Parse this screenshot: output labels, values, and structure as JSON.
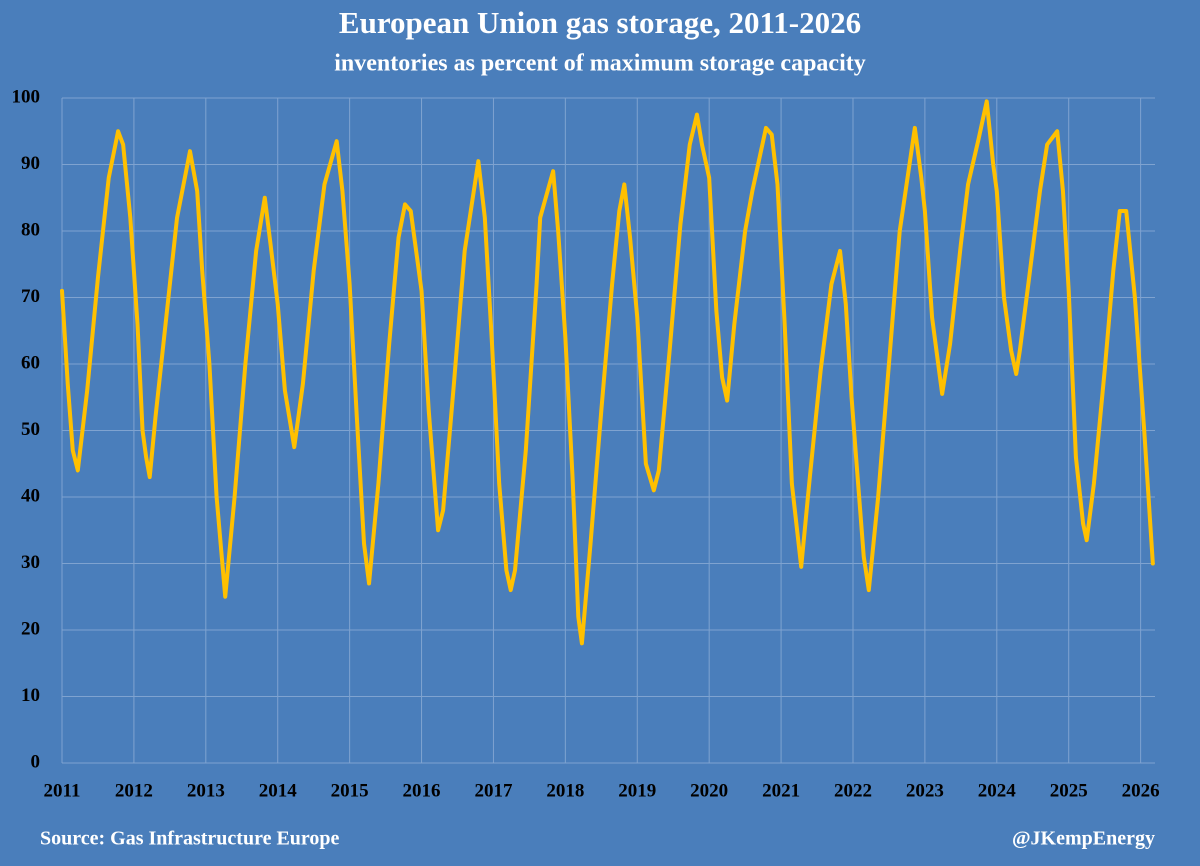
{
  "chart_data": {
    "type": "line",
    "title": "European Union gas storage, 2011-2026",
    "subtitle": "inventories as percent of maximum storage capacity",
    "source": "Source: Gas Infrastructure Europe",
    "credit": "@JKempEnergy",
    "color": "#ffc000",
    "grid": true,
    "xlim": [
      2011,
      2026.2
    ],
    "xticks": [
      2011,
      2012,
      2013,
      2014,
      2015,
      2016,
      2017,
      2018,
      2019,
      2020,
      2021,
      2022,
      2023,
      2024,
      2025,
      2026
    ],
    "ylim": [
      0,
      100
    ],
    "yticks": [
      0,
      10,
      20,
      30,
      40,
      50,
      60,
      70,
      80,
      90,
      100
    ],
    "x": [
      2011.0,
      2011.08,
      2011.15,
      2011.22,
      2011.35,
      2011.5,
      2011.65,
      2011.78,
      2011.85,
      2011.95,
      2012.05,
      2012.12,
      2012.17,
      2012.22,
      2012.3,
      2012.45,
      2012.6,
      2012.78,
      2012.88,
      2012.95,
      2013.05,
      2013.15,
      2013.27,
      2013.4,
      2013.55,
      2013.7,
      2013.82,
      2013.9,
      2014.0,
      2014.1,
      2014.23,
      2014.35,
      2014.5,
      2014.65,
      2014.82,
      2014.9,
      2015.0,
      2015.1,
      2015.2,
      2015.27,
      2015.4,
      2015.55,
      2015.68,
      2015.77,
      2015.85,
      2016.0,
      2016.1,
      2016.23,
      2016.3,
      2016.45,
      2016.6,
      2016.79,
      2016.88,
      2016.98,
      2017.08,
      2017.18,
      2017.24,
      2017.3,
      2017.45,
      2017.6,
      2017.65,
      2017.83,
      2017.9,
      2018.0,
      2018.1,
      2018.18,
      2018.23,
      2018.35,
      2018.5,
      2018.65,
      2018.75,
      2018.82,
      2018.9,
      2019.0,
      2019.12,
      2019.23,
      2019.3,
      2019.45,
      2019.6,
      2019.73,
      2019.83,
      2019.9,
      2020.0,
      2020.1,
      2020.18,
      2020.25,
      2020.35,
      2020.5,
      2020.6,
      2020.79,
      2020.87,
      2020.95,
      2021.05,
      2021.15,
      2021.28,
      2021.4,
      2021.55,
      2021.7,
      2021.82,
      2021.9,
      2021.98,
      2022.05,
      2022.15,
      2022.22,
      2022.35,
      2022.5,
      2022.65,
      2022.86,
      2022.95,
      2023.0,
      2023.1,
      2023.24,
      2023.35,
      2023.5,
      2023.6,
      2023.75,
      2023.86,
      2023.95,
      2024.0,
      2024.1,
      2024.2,
      2024.27,
      2024.32,
      2024.45,
      2024.6,
      2024.7,
      2024.84,
      2024.92,
      2025.0,
      2025.1,
      2025.2,
      2025.25,
      2025.35,
      2025.5,
      2025.62,
      2025.71,
      2025.8,
      2025.92,
      2026.05,
      2026.17
    ],
    "values": [
      71,
      57,
      47,
      44,
      56,
      73,
      88,
      95,
      93,
      82,
      66,
      50,
      46,
      43,
      52,
      67,
      82,
      92,
      86,
      74,
      60,
      40,
      25,
      40,
      60,
      77,
      85,
      78,
      69,
      56,
      47.5,
      57,
      74,
      87,
      93.5,
      86,
      72,
      52,
      33,
      27,
      42,
      63,
      79,
      84,
      83,
      71,
      53,
      35,
      38,
      57,
      77,
      90.5,
      82,
      63,
      42,
      29,
      26,
      29,
      47,
      72,
      82,
      89,
      80,
      64,
      43,
      22,
      18,
      33,
      53,
      72,
      83,
      87,
      79,
      67,
      45,
      41,
      44,
      62,
      81,
      93,
      97.5,
      93,
      88,
      68,
      58,
      54.5,
      66,
      80,
      86,
      95.5,
      94.5,
      87,
      66,
      42,
      29.5,
      43,
      59,
      72,
      77,
      69,
      55,
      45,
      31,
      26,
      40,
      60,
      80,
      95.5,
      88,
      83,
      67,
      55.5,
      63,
      78,
      87,
      94,
      99.5,
      90,
      86,
      70,
      62,
      58.5,
      62,
      73,
      86,
      93,
      95,
      86,
      71,
      46,
      36,
      33.5,
      42,
      59,
      74,
      83,
      83,
      70,
      50,
      30
    ]
  }
}
